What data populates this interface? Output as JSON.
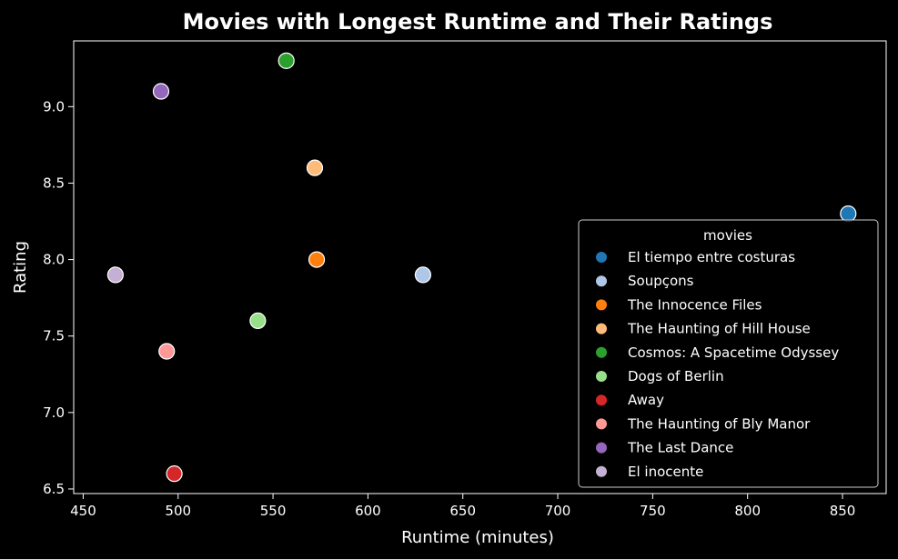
{
  "chart_data": {
    "type": "scatter",
    "title": "Movies with Longest Runtime and Their Ratings",
    "xlabel": "Runtime (minutes)",
    "ylabel": "Rating",
    "xlim": [
      445,
      873
    ],
    "ylim": [
      6.47,
      9.43
    ],
    "xticks": [
      450,
      500,
      550,
      600,
      650,
      700,
      750,
      800,
      850
    ],
    "yticks": [
      6.5,
      7.0,
      7.5,
      8.0,
      8.5,
      9.0
    ],
    "ytick_labels": [
      "6.5",
      "7.0",
      "7.5",
      "8.0",
      "8.5",
      "9.0"
    ],
    "grid": false,
    "legend": {
      "title": "movies",
      "position": "lower-right"
    },
    "series": [
      {
        "name": "El tiempo entre costuras",
        "color": "#1f77b4",
        "x": 853,
        "y": 8.3
      },
      {
        "name": "Soupçons",
        "color": "#aec7e8",
        "x": 629,
        "y": 7.9
      },
      {
        "name": "The Innocence Files",
        "color": "#ff7f0e",
        "x": 573,
        "y": 8.0
      },
      {
        "name": "The Haunting of Hill House",
        "color": "#ffbb78",
        "x": 572,
        "y": 8.6
      },
      {
        "name": "Cosmos: A Spacetime Odyssey",
        "color": "#2ca02c",
        "x": 557,
        "y": 9.3
      },
      {
        "name": "Dogs of Berlin",
        "color": "#98df8a",
        "x": 542,
        "y": 7.6
      },
      {
        "name": "Away",
        "color": "#d62728",
        "x": 498,
        "y": 6.6
      },
      {
        "name": "The Haunting of Bly Manor",
        "color": "#ff9896",
        "x": 494,
        "y": 7.4
      },
      {
        "name": "The Last Dance",
        "color": "#9467bd",
        "x": 491,
        "y": 9.1
      },
      {
        "name": "El inocente",
        "color": "#c5b0d5",
        "x": 467,
        "y": 7.9
      }
    ]
  }
}
